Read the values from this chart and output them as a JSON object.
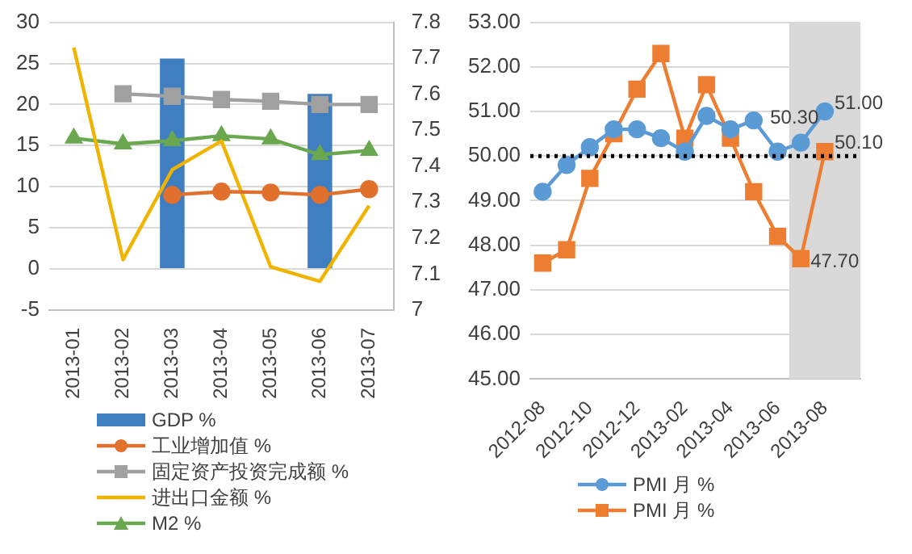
{
  "chart_data": [
    {
      "type": "bar",
      "categories": [
        "2013-01",
        "2013-02",
        "2013-03",
        "2013-04",
        "2013-05",
        "2013-06",
        "2013-07"
      ],
      "series": [
        {
          "name": "GDP %",
          "color": "#3e7ec1",
          "values": [
            null,
            null,
            25.6,
            null,
            null,
            21.3,
            null
          ]
        },
        {
          "name": "工业增加值 %",
          "type": "line",
          "color": "#e0702c",
          "marker": "circle",
          "values": [
            null,
            null,
            9.0,
            9.4,
            9.3,
            9.0,
            9.7
          ]
        },
        {
          "name": "固定资产投资完成额 %",
          "type": "line",
          "color": "#a0a0a0",
          "marker": "square",
          "values": [
            null,
            21.3,
            21.0,
            20.6,
            20.4,
            20.0,
            20.0
          ]
        },
        {
          "name": "进出口金额 %",
          "type": "line",
          "axis": "y2",
          "color": "#f0b400",
          "marker": "none",
          "values": [
            7.73,
            7.14,
            7.39,
            7.47,
            7.12,
            7.08,
            7.29
          ]
        },
        {
          "name": "M2 %",
          "type": "line",
          "color": "#6aa84f",
          "marker": "triangle",
          "values": [
            15.9,
            15.2,
            15.6,
            16.2,
            15.8,
            13.9,
            14.4
          ]
        }
      ],
      "ylim": [
        -5,
        30
      ],
      "yticks": [
        -5,
        0,
        5,
        10,
        15,
        20,
        25,
        30
      ],
      "y2lim": [
        7,
        7.8
      ],
      "y2ticks": [
        7,
        7.1,
        7.2,
        7.3,
        7.4,
        7.5,
        7.6,
        7.7,
        7.8
      ],
      "grid": "y",
      "legend": "bottom"
    },
    {
      "type": "line",
      "x": [
        "2012-08",
        "2012-09",
        "2012-10",
        "2012-11",
        "2012-12",
        "2013-01",
        "2013-02",
        "2013-03",
        "2013-04",
        "2013-05",
        "2013-06",
        "2013-07",
        "2013-08"
      ],
      "xlim": [
        "2012-07-16",
        "2013-09-16"
      ],
      "xticks": [
        "2012-08",
        "2012-10",
        "2012-12",
        "2013-02",
        "2013-04",
        "2013-06",
        "2013-08"
      ],
      "series": [
        {
          "name": "PMI 月 %",
          "color": "#5b9bd5",
          "marker": "circle",
          "values": [
            49.2,
            49.8,
            50.2,
            50.6,
            50.6,
            50.4,
            50.1,
            50.9,
            50.6,
            50.8,
            50.1,
            50.3,
            51.0
          ],
          "value_labels": [
            null,
            null,
            null,
            null,
            null,
            null,
            null,
            null,
            null,
            null,
            null,
            "50.30",
            "51.00"
          ]
        },
        {
          "name": "PMI 月 %",
          "color": "#ed7d31",
          "marker": "square",
          "values": [
            47.6,
            47.9,
            49.5,
            50.5,
            51.5,
            52.3,
            50.4,
            51.6,
            50.4,
            49.2,
            48.2,
            47.7,
            50.1
          ],
          "value_labels": [
            null,
            null,
            null,
            null,
            null,
            null,
            null,
            null,
            null,
            null,
            null,
            "47.70",
            "50.10"
          ]
        }
      ],
      "ylim": [
        45,
        53
      ],
      "yticks": [
        {
          "value": 45,
          "label": "45.00"
        },
        {
          "value": 46,
          "label": "46.00"
        },
        {
          "value": 47,
          "label": "47.00"
        },
        {
          "value": 48,
          "label": "48.00"
        },
        {
          "value": 49,
          "label": "49.00"
        },
        {
          "value": 50,
          "label": "50.00"
        },
        {
          "value": 51,
          "label": "51.00"
        },
        {
          "value": 52,
          "label": "52.00"
        },
        {
          "value": 53,
          "label": "53.00"
        }
      ],
      "grid": "y",
      "legend": "bottom",
      "ref_lines": [
        {
          "axis": "y",
          "value": 50,
          "color": "#000000",
          "line_style": "dotted"
        }
      ],
      "bands": [
        {
          "axis": "x",
          "from": "2013-06-16",
          "to": "2013-09-16",
          "color": "#d9d9d9"
        }
      ]
    }
  ]
}
